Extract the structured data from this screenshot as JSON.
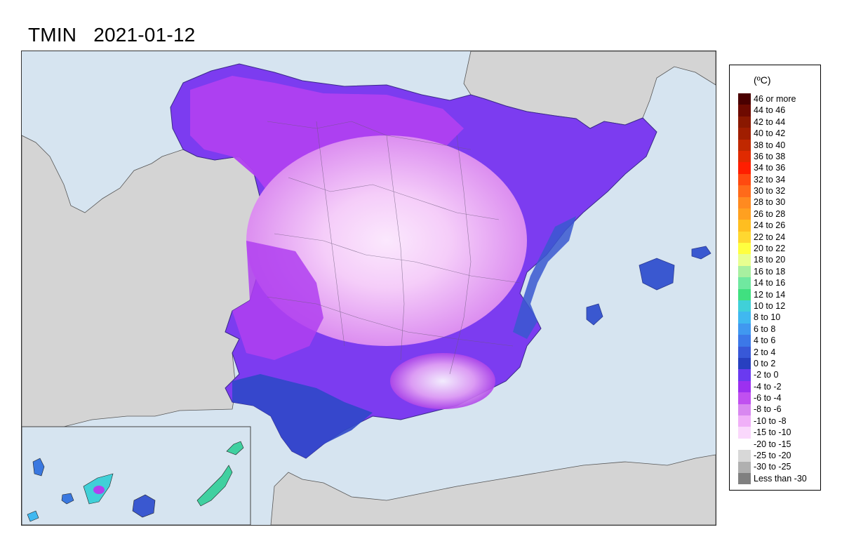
{
  "title": {
    "variable": "TMIN",
    "date": "2021-01-12"
  },
  "legend": {
    "unit": "(ºC)",
    "items": [
      {
        "label": "46 or more",
        "color": "#4a0000"
      },
      {
        "label": "44 to 46",
        "color": "#6e0a00"
      },
      {
        "label": "42 to 44",
        "color": "#8a1800"
      },
      {
        "label": "40 to 42",
        "color": "#a01e00"
      },
      {
        "label": "38 to 40",
        "color": "#c02800"
      },
      {
        "label": "36 to 38",
        "color": "#e02a00"
      },
      {
        "label": "34 to 36",
        "color": "#ff1e00"
      },
      {
        "label": "32 to 34",
        "color": "#ff4a10"
      },
      {
        "label": "30 to 32",
        "color": "#ff6a1a"
      },
      {
        "label": "28 to 30",
        "color": "#ff8a20"
      },
      {
        "label": "26 to 28",
        "color": "#ffa020"
      },
      {
        "label": "24 to 26",
        "color": "#ffbe20"
      },
      {
        "label": "22 to 24",
        "color": "#ffd830"
      },
      {
        "label": "20 to 22",
        "color": "#ffff40"
      },
      {
        "label": "18 to 20",
        "color": "#e8ff90"
      },
      {
        "label": "16 to 18",
        "color": "#a8f0a0"
      },
      {
        "label": "14 to 16",
        "color": "#70e8a0"
      },
      {
        "label": "12 to 14",
        "color": "#40e080"
      },
      {
        "label": "10 to 12",
        "color": "#40d0d8"
      },
      {
        "label": "8 to 10",
        "color": "#40b8f0"
      },
      {
        "label": "6 to 8",
        "color": "#4098f0"
      },
      {
        "label": "4 to 6",
        "color": "#3c78e8"
      },
      {
        "label": "2 to 4",
        "color": "#3858d8"
      },
      {
        "label": "0 to 2",
        "color": "#2840c0"
      },
      {
        "label": "-2 to 0",
        "color": "#6a3af0"
      },
      {
        "label": "-4 to -2",
        "color": "#9c30f0"
      },
      {
        "label": "-6 to -4",
        "color": "#c050f0"
      },
      {
        "label": "-8 to -6",
        "color": "#d888f0"
      },
      {
        "label": "-10 to -8",
        "color": "#f0b0f8"
      },
      {
        "label": "-15 to -10",
        "color": "#fad8fc"
      },
      {
        "label": "-20 to -15",
        "color": "#ffffff"
      },
      {
        "label": "-25 to -20",
        "color": "#d8d8d8"
      },
      {
        "label": "-30 to -25",
        "color": "#b0b0b0"
      },
      {
        "label": "Less than -30",
        "color": "#808080"
      }
    ]
  },
  "map": {
    "sea_color": "#d6e4f0",
    "land_color": "#d4d4d4",
    "border_color": "#7a7a7a"
  }
}
